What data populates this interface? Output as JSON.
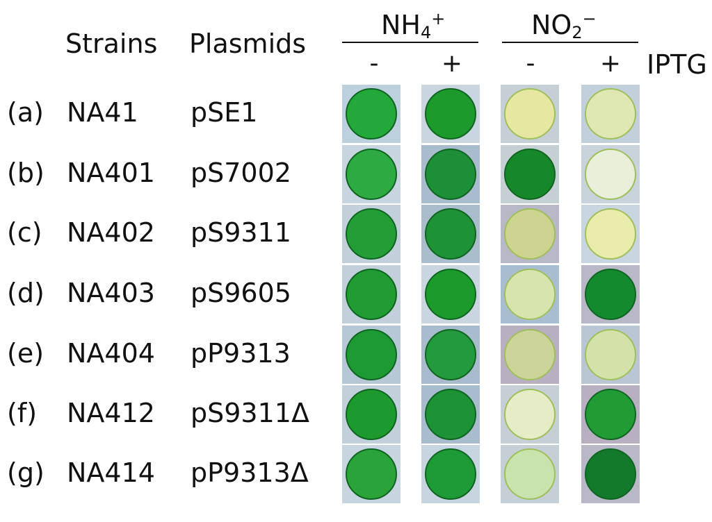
{
  "header": {
    "strains": "Strains",
    "plasmids": "Plasmids",
    "ammonium_base": "NH",
    "ammonium_sub": "4",
    "ammonium_sup": "+",
    "nitrite_base": "NO",
    "nitrite_sub": "2",
    "nitrite_sup": "−",
    "iptg": "IPTG",
    "signs": [
      "-",
      "+",
      "-",
      "+"
    ]
  },
  "rows": [
    {
      "label": "(a)",
      "strain": "NA41",
      "plasmid": "pSE1",
      "colonies": [
        "#23a83a",
        "#1c9a2c",
        "#e6e8a2",
        "#dfe8b2"
      ],
      "backgrounds": [
        "#bcd0de",
        "#c9d6e0",
        "#c7cfd6",
        "#c2d0dc"
      ]
    },
    {
      "label": "(b)",
      "strain": "NA401",
      "plasmid": "pS7002",
      "colonies": [
        "#2daa42",
        "#1d8f38",
        "#16882a",
        "#e9efd9"
      ],
      "backgrounds": [
        "#c6d5df",
        "#a9bccd",
        "#c6cfd3",
        "#c8d3dc"
      ]
    },
    {
      "label": "(c)",
      "strain": "NA402",
      "plasmid": "pS9311",
      "colonies": [
        "#239e36",
        "#1e9236",
        "#cdd490",
        "#e9ecaa"
      ],
      "backgrounds": [
        "#c2d0dc",
        "#aabdcc",
        "#b8b8c6",
        "#c9d6e0"
      ]
    },
    {
      "label": "(d)",
      "strain": "NA403",
      "plasmid": "pS9605",
      "colonies": [
        "#209c32",
        "#1c9a2c",
        "#d8e4ae",
        "#138a2e"
      ],
      "backgrounds": [
        "#c2d0dc",
        "#c9d6e0",
        "#a8bed0",
        "#b8b8c6"
      ]
    },
    {
      "label": "(e)",
      "strain": "NA404",
      "plasmid": "pP9313",
      "colonies": [
        "#1e9a34",
        "#239a3e",
        "#cdd49a",
        "#d2e2a8"
      ],
      "backgrounds": [
        "#b6c8d6",
        "#a9bccd",
        "#b8b0c0",
        "#b9c6d3"
      ]
    },
    {
      "label": "(f)",
      "strain": "NA412",
      "plasmid": "pS9311Δ",
      "colonies": [
        "#1d9a2e",
        "#1d9236",
        "#e6ecc6",
        "#219c34"
      ],
      "backgrounds": [
        "#c2d0dc",
        "#a9bccd",
        "#c7cfd6",
        "#b8b0c0"
      ]
    },
    {
      "label": "(g)",
      "strain": "NA414",
      "plasmid": "pP9313Δ",
      "colonies": [
        "#2aa43a",
        "#1e9a36",
        "#c9e3ad",
        "#127a2a"
      ],
      "backgrounds": [
        "#c6d5df",
        "#c6d5df",
        "#c7cfd6",
        "#b8b8c6"
      ]
    }
  ]
}
